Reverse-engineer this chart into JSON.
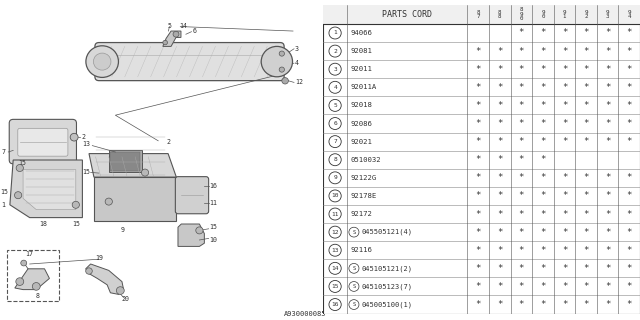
{
  "bg_color": "#ffffff",
  "ref_code": "A930000085",
  "years": [
    "8\n7",
    "8\n8",
    "8\n9\n0",
    "9\n0",
    "9\n1",
    "9\n2",
    "9\n3",
    "9\n4"
  ],
  "rows": [
    {
      "num": "1",
      "part": "94066",
      "marks": [
        0,
        0,
        1,
        1,
        1,
        1,
        1,
        1
      ]
    },
    {
      "num": "2",
      "part": "92081",
      "marks": [
        1,
        1,
        1,
        1,
        1,
        1,
        1,
        1
      ]
    },
    {
      "num": "3",
      "part": "92011",
      "marks": [
        1,
        1,
        1,
        1,
        1,
        1,
        1,
        1
      ]
    },
    {
      "num": "4",
      "part": "92011A",
      "marks": [
        1,
        1,
        1,
        1,
        1,
        1,
        1,
        1
      ]
    },
    {
      "num": "5",
      "part": "92018",
      "marks": [
        1,
        1,
        1,
        1,
        1,
        1,
        1,
        1
      ]
    },
    {
      "num": "6",
      "part": "92086",
      "marks": [
        1,
        1,
        1,
        1,
        1,
        1,
        1,
        1
      ]
    },
    {
      "num": "7",
      "part": "92021",
      "marks": [
        1,
        1,
        1,
        1,
        1,
        1,
        1,
        1
      ]
    },
    {
      "num": "8",
      "part": "0510032",
      "marks": [
        1,
        1,
        1,
        1,
        0,
        0,
        0,
        0
      ]
    },
    {
      "num": "9",
      "part": "92122G",
      "marks": [
        1,
        1,
        1,
        1,
        1,
        1,
        1,
        1
      ]
    },
    {
      "num": "10",
      "part": "92178E",
      "marks": [
        1,
        1,
        1,
        1,
        1,
        1,
        1,
        1
      ]
    },
    {
      "num": "11",
      "part": "92172",
      "marks": [
        1,
        1,
        1,
        1,
        1,
        1,
        1,
        1
      ]
    },
    {
      "num": "12",
      "part": "S045505121(4)",
      "marks": [
        1,
        1,
        1,
        1,
        1,
        1,
        1,
        1
      ]
    },
    {
      "num": "13",
      "part": "92116",
      "marks": [
        1,
        1,
        1,
        1,
        1,
        1,
        1,
        1
      ]
    },
    {
      "num": "14",
      "part": "S045105121(2)",
      "marks": [
        1,
        1,
        1,
        1,
        1,
        1,
        1,
        1
      ]
    },
    {
      "num": "15",
      "part": "S045105123(7)",
      "marks": [
        1,
        1,
        1,
        1,
        1,
        1,
        1,
        1
      ]
    },
    {
      "num": "16",
      "part": "S045005100(1)",
      "marks": [
        1,
        1,
        1,
        1,
        1,
        1,
        1,
        1
      ]
    }
  ],
  "line_color": "#555555",
  "text_color": "#333333",
  "diagram_split": 0.515
}
